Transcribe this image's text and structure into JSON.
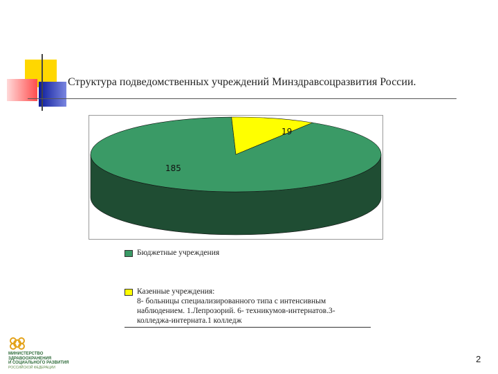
{
  "slide": {
    "title": "Структура подведомственных учреждений Минздравсоцразвития России.",
    "page_number": "2"
  },
  "colors": {
    "green_top": "#3a9a66",
    "green_side": "#1f4d33",
    "yellow_top": "#ffff00",
    "yellow_side": "#8c8c00",
    "deco_yellow": "#ffd700",
    "deco_red": "#ff5050",
    "deco_blue": "#1c2a9e"
  },
  "chart_data": {
    "type": "pie",
    "style": "3d",
    "series": [
      {
        "name": "Бюджетные учреждения",
        "value": 185,
        "color": "#3a9a66"
      },
      {
        "name": "Казенные учреждения:\n8- больницы специализированного типа с интенсивным наблюдением. 1.Лепрозорий. 6- техникумов-интернатов.3-колледжа-интерната.1 колледж",
        "value": 19,
        "color": "#ffff00"
      }
    ],
    "legend_position": "bottom"
  },
  "logo": {
    "lines": [
      "МИНИСТЕРСТВО",
      "ЗДРАВООХРАНЕНИЯ",
      "И СОЦИАЛЬНОГО РАЗВИТИЯ"
    ],
    "subline": "РОССИЙСКОЙ ФЕДЕРАЦИИ"
  }
}
